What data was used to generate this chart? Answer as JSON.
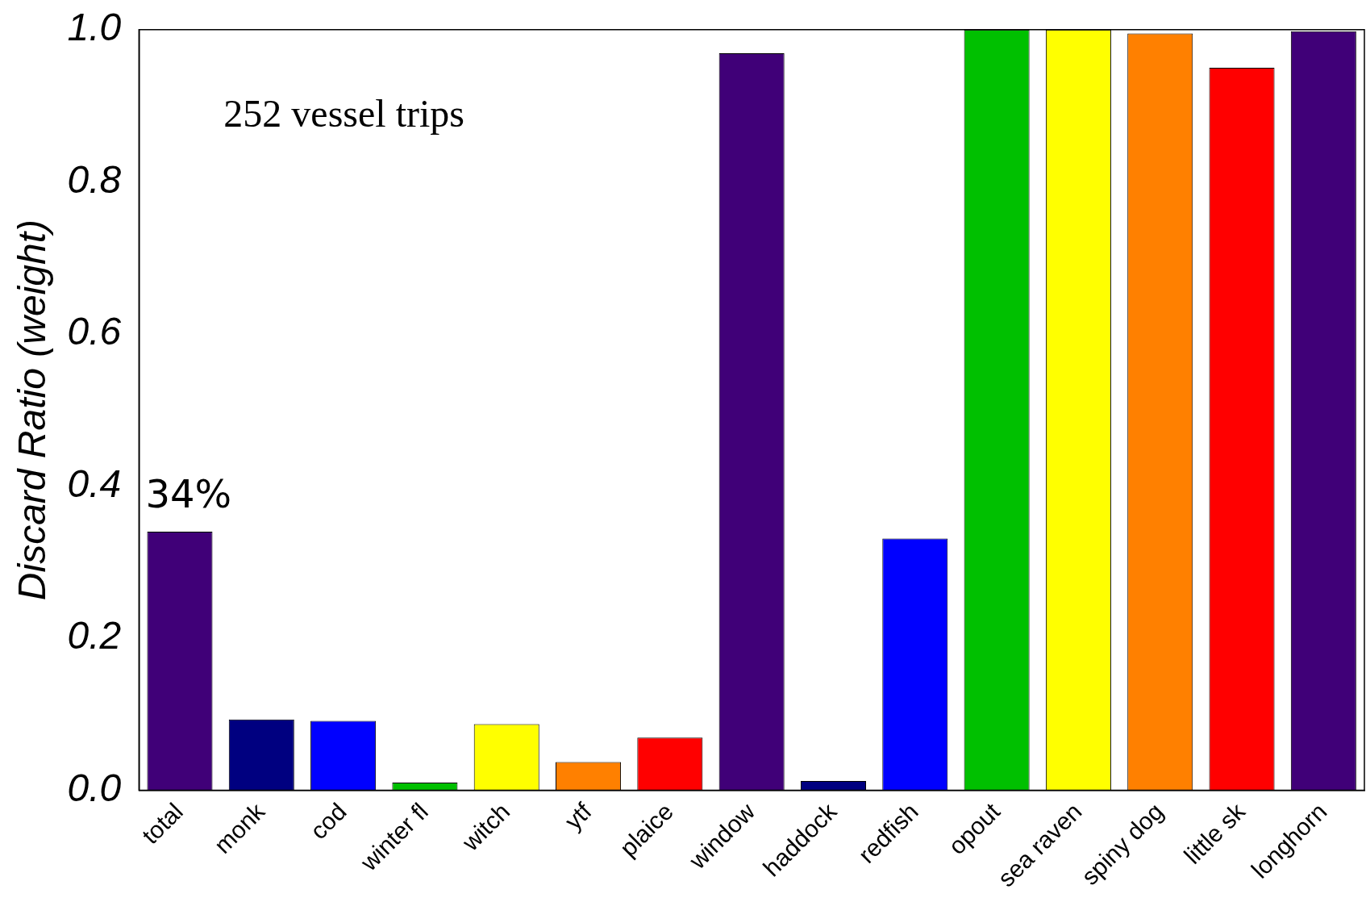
{
  "chart_data": {
    "type": "bar",
    "ylabel": "Discard Ratio (weight)",
    "categories": [
      "total",
      "monk",
      "cod",
      "winter fl",
      "witch",
      "ytf",
      "plaice",
      "window",
      "haddock",
      "redfish",
      "opout",
      "sea raven",
      "spiny dog",
      "little sk",
      "longhorn"
    ],
    "values": [
      0.34,
      0.093,
      0.091,
      0.01,
      0.087,
      0.037,
      0.069,
      0.969,
      0.012,
      0.331,
      1.0,
      1.0,
      0.995,
      0.95,
      0.998
    ],
    "colors": [
      "#400078",
      "#000080",
      "#0000ff",
      "#00c000",
      "#ffff00",
      "#ff8000",
      "#ff0000",
      "#400078",
      "#000080",
      "#0000ff",
      "#00c000",
      "#ffff00",
      "#ff8000",
      "#ff0000",
      "#400078"
    ],
    "ylim": [
      0,
      1
    ],
    "yticks": [
      {
        "value": 0,
        "label": "0.0"
      },
      {
        "value": 0.2,
        "label": "0.2"
      },
      {
        "value": 0.4,
        "label": "0.4"
      },
      {
        "value": 0.6,
        "label": "0.6"
      },
      {
        "value": 0.8,
        "label": "0.8"
      },
      {
        "value": 1,
        "label": "1.0"
      }
    ],
    "grid": false,
    "legend": false,
    "annotations": [
      "252 vessel trips",
      {
        "text": "34%",
        "x": "total",
        "y": 0.34
      }
    ]
  }
}
